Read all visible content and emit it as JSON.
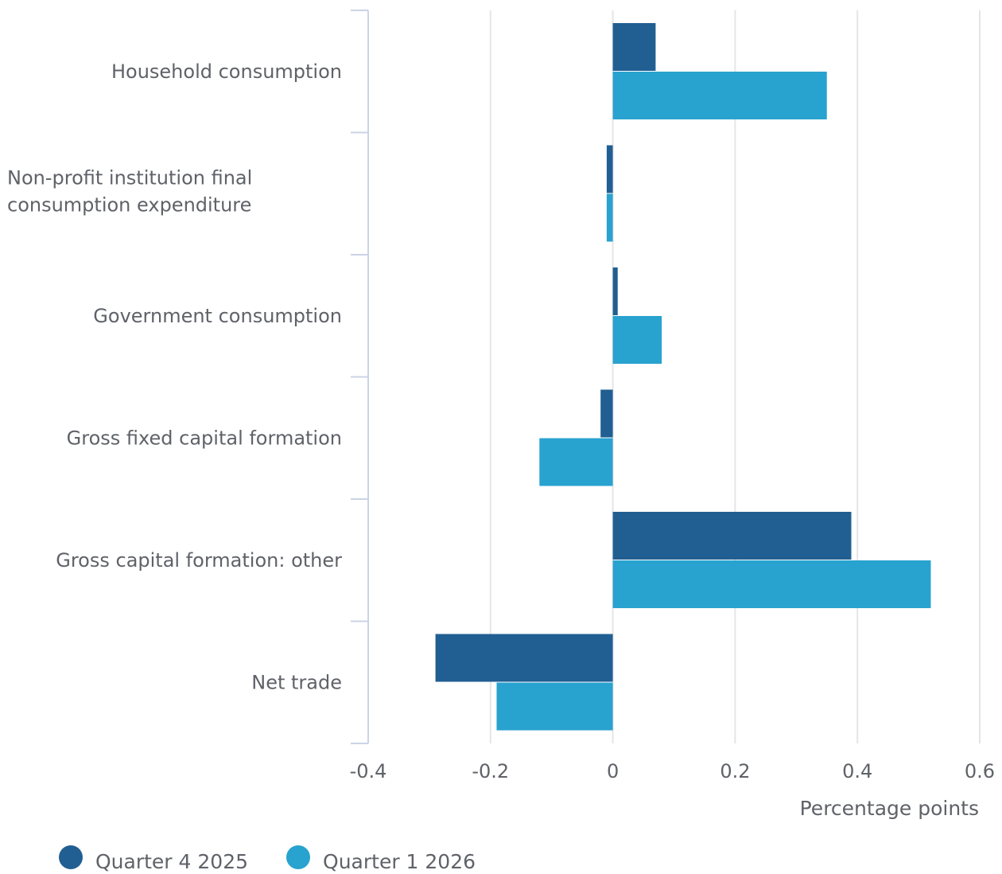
{
  "chart_data": {
    "type": "bar",
    "orientation": "horizontal",
    "categories": [
      "Household consumption",
      "Non-profit institution final consumption expenditure",
      "Government consumption",
      "Gross fixed capital formation",
      "Gross capital formation: other",
      "Net trade"
    ],
    "category_lines": [
      [
        "Household consumption"
      ],
      [
        "Non-profit institution final",
        "consumption expenditure"
      ],
      [
        "Government consumption"
      ],
      [
        "Gross fixed capital formation"
      ],
      [
        "Gross capital formation: other"
      ],
      [
        "Net trade"
      ]
    ],
    "series": [
      {
        "name": "Quarter 4 2025",
        "color": "#215f92",
        "values": [
          0.07,
          -0.01,
          0.008,
          -0.02,
          0.39,
          -0.29
        ]
      },
      {
        "name": "Quarter 1 2026",
        "color": "#28a2cf",
        "values": [
          0.35,
          -0.01,
          0.08,
          -0.12,
          0.52,
          -0.19
        ]
      }
    ],
    "xlabel": "Percentage points",
    "xlim": [
      -0.4,
      0.6
    ],
    "xticks": [
      -0.4,
      -0.2,
      0,
      0.2,
      0.4,
      0.6
    ],
    "xtick_labels": [
      "-0.4",
      "-0.2",
      "0",
      "0.2",
      "0.4",
      "0.6"
    ],
    "grid": true,
    "legend_position": "bottom-left"
  },
  "legend": {
    "items": [
      {
        "label": "Quarter 4 2025",
        "color": "#215f92"
      },
      {
        "label": "Quarter 1 2026",
        "color": "#28a2cf"
      }
    ]
  }
}
